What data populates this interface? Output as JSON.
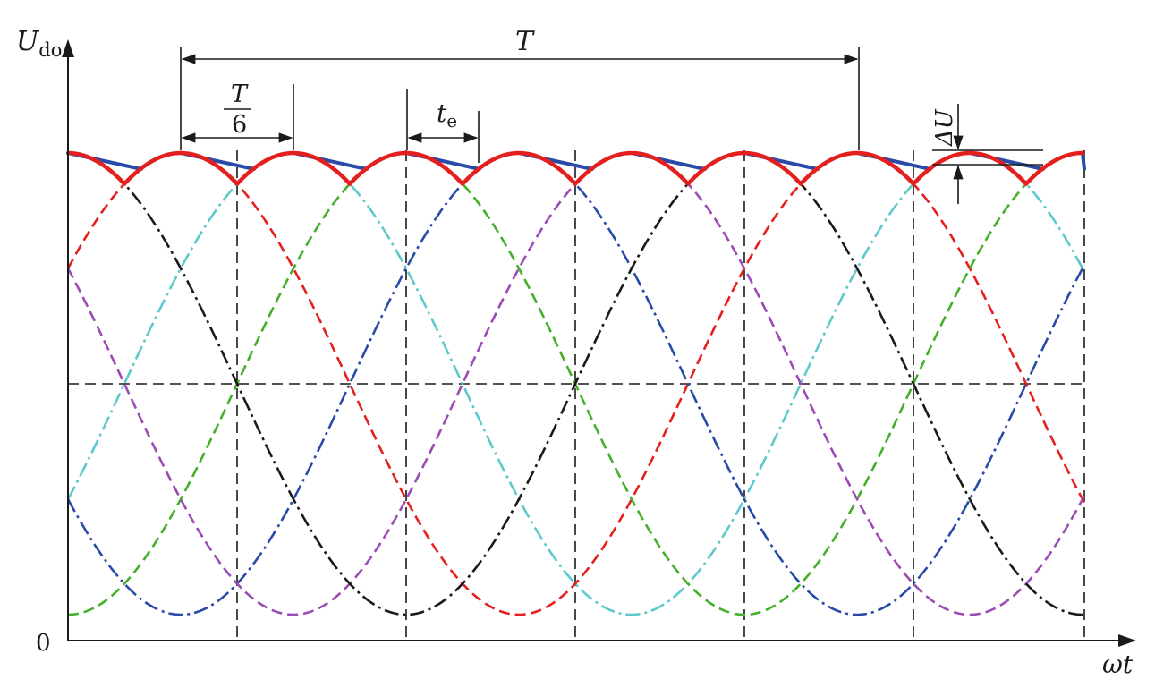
{
  "labels": {
    "y_axis_main": "U",
    "y_axis_sub": "do",
    "origin": "0",
    "x_axis": "ωt",
    "period": "T",
    "sixth_numerator": "T",
    "sixth_denominator": "6",
    "te_main": "t",
    "te_sub": "e",
    "delta_u": "ΔU"
  },
  "colors": {
    "axis": "#1a1a1a",
    "ripple_envelope": "#e4201e",
    "decay_line": "#2a4aa8",
    "phases": [
      "#e4201e",
      "#5dc9cc",
      "#44b02a",
      "#2a4aa8",
      "#9b4bb5",
      "#1a1a1a"
    ]
  },
  "chart_data": {
    "type": "line",
    "phase_count": 6,
    "pulses_per_period": 6,
    "envelope": "max of six phase-shifted sinusoids (ripple)",
    "decay_segments": "linear capacitor discharge between peaks",
    "series_colors": [
      "red",
      "cyan",
      "green",
      "blue",
      "purple",
      "black"
    ]
  }
}
